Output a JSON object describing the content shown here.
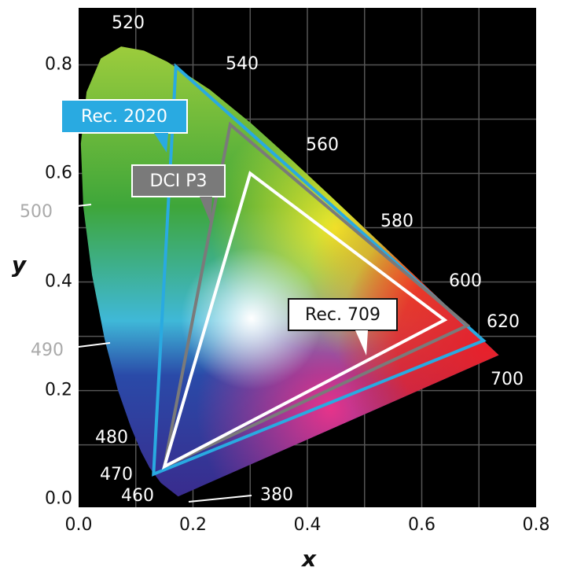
{
  "chart_data": {
    "type": "chromaticity",
    "xlabel": "x",
    "ylabel": "y",
    "xlim": [
      0,
      0.8
    ],
    "ylim": [
      -0.015,
      0.905
    ],
    "xticks": [
      {
        "value": 0,
        "label": "0.0"
      },
      0.2,
      0.4,
      0.6,
      0.8
    ],
    "yticks": [
      {
        "value": 0,
        "label": "0.0"
      },
      0.2,
      0.4,
      0.6,
      0.8
    ],
    "xgrid": [
      0.1,
      0.2,
      0.3,
      0.4,
      0.5,
      0.6,
      0.7
    ],
    "ygrid": [
      0.1,
      0.2,
      0.3,
      0.4,
      0.5,
      0.6,
      0.7,
      0.8
    ],
    "locus": {
      "x": [
        0.1741,
        0.144,
        0.1241,
        0.1096,
        0.0913,
        0.0687,
        0.0454,
        0.0235,
        0.0082,
        0.0039,
        0.0139,
        0.0389,
        0.0743,
        0.1142,
        0.1547,
        0.2296,
        0.3016,
        0.3731,
        0.4441,
        0.5125,
        0.5752,
        0.627,
        0.6915,
        0.7347
      ],
      "y": [
        0.005,
        0.0297,
        0.0578,
        0.0868,
        0.1327,
        0.2007,
        0.295,
        0.4127,
        0.5384,
        0.6548,
        0.7502,
        0.812,
        0.8338,
        0.8262,
        0.8059,
        0.7543,
        0.6923,
        0.6245,
        0.5547,
        0.4866,
        0.4242,
        0.3725,
        0.3083,
        0.2653
      ]
    },
    "wavelength_labels": [
      "520",
      "540",
      "560",
      "580",
      "600",
      "620",
      "700",
      "500",
      "490",
      "480",
      "470",
      "460",
      "380"
    ],
    "series": [
      {
        "name": "Rec. 2020",
        "color": "#29aae1",
        "x": [
          0.708,
          0.17,
          0.131
        ],
        "y": [
          0.292,
          0.797,
          0.046
        ]
      },
      {
        "name": "DCI P3",
        "color": "#7a7a7a",
        "x": [
          0.68,
          0.265,
          0.15
        ],
        "y": [
          0.32,
          0.69,
          0.06
        ]
      },
      {
        "name": "Rec. 709",
        "color": "#ffffff",
        "x": [
          0.64,
          0.3,
          0.15
        ],
        "y": [
          0.33,
          0.6,
          0.06
        ]
      }
    ]
  }
}
